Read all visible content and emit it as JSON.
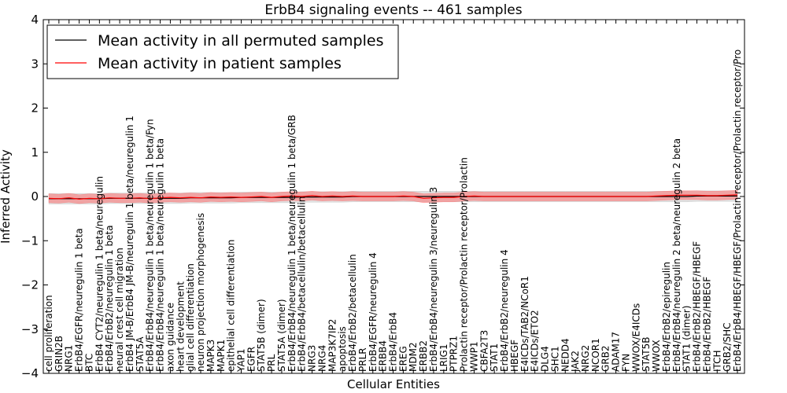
{
  "chart_data": {
    "type": "line",
    "title": "ErbB4 signaling events -- 461 samples",
    "xlabel": "Cellular Entities",
    "ylabel": "Inferred Activity",
    "ylim": [
      -4,
      4
    ],
    "yticks": [
      -4,
      -3,
      -2,
      -1,
      0,
      1,
      2,
      3,
      4
    ],
    "ytick_labels": [
      "−4",
      "−3",
      "−2",
      "−1",
      "0",
      "1",
      "2",
      "3",
      "4"
    ],
    "grid": false,
    "legend_position": "top-left",
    "categories": [
      "cell proliferation",
      "GRIN2B",
      "NRG1",
      "ErbB4/EGFR/neuregulin 1 beta",
      "BTC",
      "ErbB4 CYT2/neuregulin 1 beta/neuregulin",
      "ErbB4/ErbB2/neuregulin 1 beta",
      "neural crest cell migration",
      "ErbB4 JM-B/ErbB4 JM-B/neuregulin 1 beta/neuregulin 1",
      "STAT5A",
      "ErbB4/ErbB4/neuregulin 1 beta/neuregulin 1 beta/Fyn",
      "ErbB4/ErbB4/neuregulin 1 beta/neuregulin 1 beta",
      "axon guidance",
      "heart development",
      "glial cell differentiation",
      "neuron projection morphogenesis",
      "MAPK3",
      "MAPK1",
      "epithelial cell differentiation",
      "YAP1",
      "EGFR",
      "STAT5B (dimer)",
      "PRL",
      "STAT5A (dimer)",
      "ErbB4/ErbB4/neuregulin 1 beta/neuregulin 1 beta/GRB",
      "ErbB4/ErbB4/betacellulin/betacellulin",
      "NRG3",
      "NRG4",
      "MAP3K7IP2",
      "apoptosis",
      "ErbB4/ErbB2/betacellulin",
      "PRLR",
      "ErbB4/EGFR/neuregulin 4",
      "ERBB4",
      "ErbB4/ErbB4",
      "EREG",
      "MDM2",
      "ERBB2",
      "ErbB4/ErbB4/neuregulin 3/neuregulin 3",
      "LRIG1",
      "PTPRZ1",
      "Prolactin receptor/Prolactin receptor/Prolactin",
      "WWP1",
      "CBFA2T3",
      "STAT1",
      "ErbB4/ErbB2/neuregulin 4",
      "HBEGF",
      "E4ICDs/TAB2/NCoR1",
      "E4ICDs/ETO2",
      "DLG4",
      "SHC1",
      "NEDD4",
      "JAK2",
      "NRG2",
      "NCOR1",
      "GRB2",
      "ADAM17",
      "FYN",
      "WWOX/E4ICDs",
      "STAT5B",
      "WWOX",
      "ErbB4/ErbB2/epiregulin",
      "ErbB4/ErbB4/neuregulin 2 beta/neuregulin 2 beta",
      "STAT1 (dimer)",
      "ErbB4/ErbB2/HBEGF/HBEGF",
      "ErbB4/ErbB2/HBEGF",
      "ITCH",
      "GRB2/SHC",
      "ErbB4/ErbB4/HBEGF/HBEGF/Prolactin receptor/Prolactin receptor/Pro"
    ],
    "series": [
      {
        "name": "Mean activity in all permuted samples",
        "color": "#000000",
        "values": [
          -0.05,
          -0.05,
          -0.05,
          -0.05,
          -0.05,
          -0.05,
          -0.04,
          -0.04,
          -0.04,
          -0.04,
          -0.04,
          -0.04,
          -0.04,
          -0.04,
          -0.03,
          -0.03,
          -0.03,
          -0.03,
          -0.03,
          -0.02,
          -0.02,
          -0.02,
          -0.02,
          -0.02,
          -0.02,
          -0.01,
          -0.01,
          -0.01,
          -0.01,
          -0.01,
          0.0,
          0.0,
          0.0,
          0.0,
          0.0,
          0.0,
          0.0,
          0.0,
          0.0,
          0.0,
          0.0,
          0.0,
          0.0,
          0.0,
          0.0,
          0.0,
          0.0,
          0.0,
          0.0,
          0.0,
          0.0,
          0.0,
          0.0,
          0.0,
          0.0,
          0.0,
          0.0,
          0.0,
          0.0,
          0.0,
          0.0,
          0.0,
          0.0,
          0.0,
          0.01,
          0.01,
          0.01,
          0.01,
          0.01
        ],
        "band": 0.12,
        "band_color": "#bbbbbb"
      },
      {
        "name": "Mean activity in patient samples",
        "color": "#ff0000",
        "values": [
          -0.04,
          -0.05,
          -0.03,
          -0.06,
          -0.04,
          -0.05,
          -0.03,
          -0.04,
          -0.04,
          -0.03,
          -0.05,
          -0.03,
          -0.02,
          -0.03,
          -0.02,
          -0.03,
          -0.01,
          -0.02,
          -0.01,
          -0.02,
          -0.01,
          0.0,
          -0.02,
          0.0,
          0.01,
          0.0,
          0.02,
          0.0,
          0.01,
          0.0,
          0.01,
          0.0,
          0.0,
          0.0,
          0.0,
          0.01,
          0.0,
          -0.04,
          -0.03,
          -0.02,
          -0.02,
          0.0,
          0.01,
          0.0,
          0.0,
          0.0,
          0.0,
          0.0,
          0.0,
          0.0,
          0.0,
          0.0,
          0.0,
          0.0,
          0.0,
          0.0,
          0.0,
          0.0,
          0.0,
          0.0,
          0.01,
          0.02,
          0.03,
          0.03,
          0.03,
          0.02,
          0.02,
          0.03,
          0.04
        ],
        "band": 0.1,
        "band_color": "#ff6666"
      }
    ]
  }
}
